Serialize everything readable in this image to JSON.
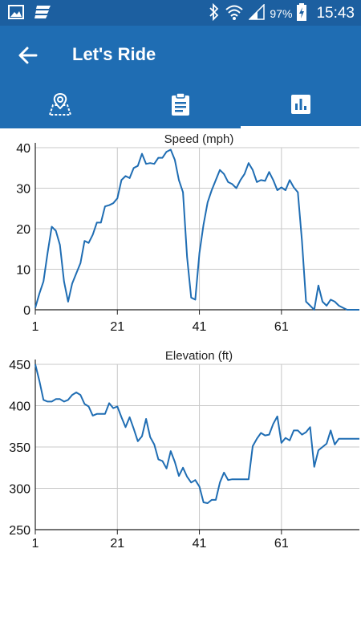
{
  "status_bar": {
    "battery_percent": "97%",
    "time": "15:43",
    "icons": [
      "image-icon",
      "app-notification-icon",
      "bluetooth-icon",
      "wifi-icon",
      "signal-icon",
      "battery-charging-icon"
    ]
  },
  "app_bar": {
    "title": "Let's Ride",
    "back_icon": "arrow-left-icon"
  },
  "tabs": [
    {
      "icon": "map-pin-icon",
      "active": false
    },
    {
      "icon": "clipboard-icon",
      "active": false
    },
    {
      "icon": "bar-chart-icon",
      "active": true
    }
  ],
  "colors": {
    "status_bar": "#1c5fa0",
    "app_bar": "#1f6db3",
    "line": "#1f6db3",
    "grid": "#c8c8c8"
  },
  "chart_data": [
    {
      "type": "line",
      "title": "Speed (mph)",
      "xlabel": "",
      "ylabel": "",
      "xlim": [
        1,
        80
      ],
      "ylim": [
        0,
        40
      ],
      "xticks": [
        1,
        21,
        41,
        61
      ],
      "yticks": [
        0,
        10,
        20,
        30,
        40
      ],
      "grid": true,
      "series": [
        {
          "x": [
            1,
            2,
            3,
            4,
            5,
            6,
            7,
            8,
            9,
            10,
            11,
            12,
            13,
            14,
            15,
            16,
            17,
            18,
            19,
            20,
            21,
            22,
            23,
            24,
            25,
            26,
            27,
            28,
            29,
            30,
            31,
            32,
            33,
            34,
            35,
            36,
            37,
            38,
            39,
            40,
            41,
            42,
            43,
            44,
            45,
            46,
            47,
            48,
            49,
            50,
            51,
            52,
            53,
            54,
            55,
            56,
            57,
            58,
            59,
            60,
            61,
            62,
            63,
            64,
            65,
            66,
            67,
            68,
            69,
            70,
            71,
            72,
            73,
            74,
            75,
            76,
            77,
            78,
            79,
            80
          ],
          "values": [
            0.5,
            4,
            7,
            14,
            20.5,
            19.5,
            16,
            7,
            2,
            6.5,
            9,
            11.5,
            17,
            16.5,
            18.5,
            21.5,
            21.5,
            25.5,
            25.8,
            26.3,
            27.5,
            32,
            33,
            32.5,
            35,
            35.5,
            38.5,
            36,
            36.2,
            36,
            37.5,
            37.5,
            39,
            39.5,
            37,
            32,
            29,
            13,
            3,
            2.5,
            14,
            21,
            26.5,
            29.5,
            32,
            34.5,
            33.5,
            31.5,
            31,
            30,
            32,
            33.5,
            36.2,
            34.5,
            31.5,
            32,
            31.8,
            34,
            32,
            29.5,
            30.2,
            29.5,
            32,
            30.2,
            29,
            17,
            2,
            1,
            0,
            6,
            2,
            1,
            2.5,
            2,
            1,
            0.5,
            0,
            0,
            0,
            0
          ]
        }
      ]
    },
    {
      "type": "line",
      "title": "Elevation (ft)",
      "xlabel": "",
      "ylabel": "",
      "xlim": [
        1,
        80
      ],
      "ylim": [
        250,
        450
      ],
      "xticks": [
        1,
        21,
        41,
        61
      ],
      "yticks": [
        250,
        300,
        350,
        400,
        450
      ],
      "grid": true,
      "series": [
        {
          "x": [
            1,
            2,
            3,
            4,
            5,
            6,
            7,
            8,
            9,
            10,
            11,
            12,
            13,
            14,
            15,
            16,
            17,
            18,
            19,
            20,
            21,
            22,
            23,
            24,
            25,
            26,
            27,
            28,
            29,
            30,
            31,
            32,
            33,
            34,
            35,
            36,
            37,
            38,
            39,
            40,
            41,
            42,
            43,
            44,
            45,
            46,
            47,
            48,
            49,
            50,
            51,
            52,
            53,
            54,
            55,
            56,
            57,
            58,
            59,
            60,
            61,
            62,
            63,
            64,
            65,
            66,
            67,
            68,
            69,
            70,
            71,
            72,
            73,
            74,
            75,
            76,
            77,
            78,
            79,
            80
          ],
          "values": [
            450,
            430,
            407,
            405,
            405,
            408,
            408,
            405,
            407,
            413,
            416,
            413,
            402,
            399,
            388,
            390,
            390,
            390,
            403,
            397,
            399,
            386,
            374,
            386,
            372,
            357,
            363,
            384,
            362,
            353,
            335,
            333,
            324,
            345,
            332,
            315,
            325,
            314,
            307,
            310,
            302,
            283,
            282,
            286,
            286,
            307,
            319,
            310,
            311,
            311,
            311,
            311,
            311,
            351,
            360,
            367,
            364,
            365,
            378,
            387,
            355,
            361,
            358,
            370,
            370,
            365,
            368,
            374,
            326,
            346,
            350,
            354,
            370,
            353,
            360,
            360,
            360,
            360,
            360,
            360
          ]
        }
      ]
    }
  ]
}
